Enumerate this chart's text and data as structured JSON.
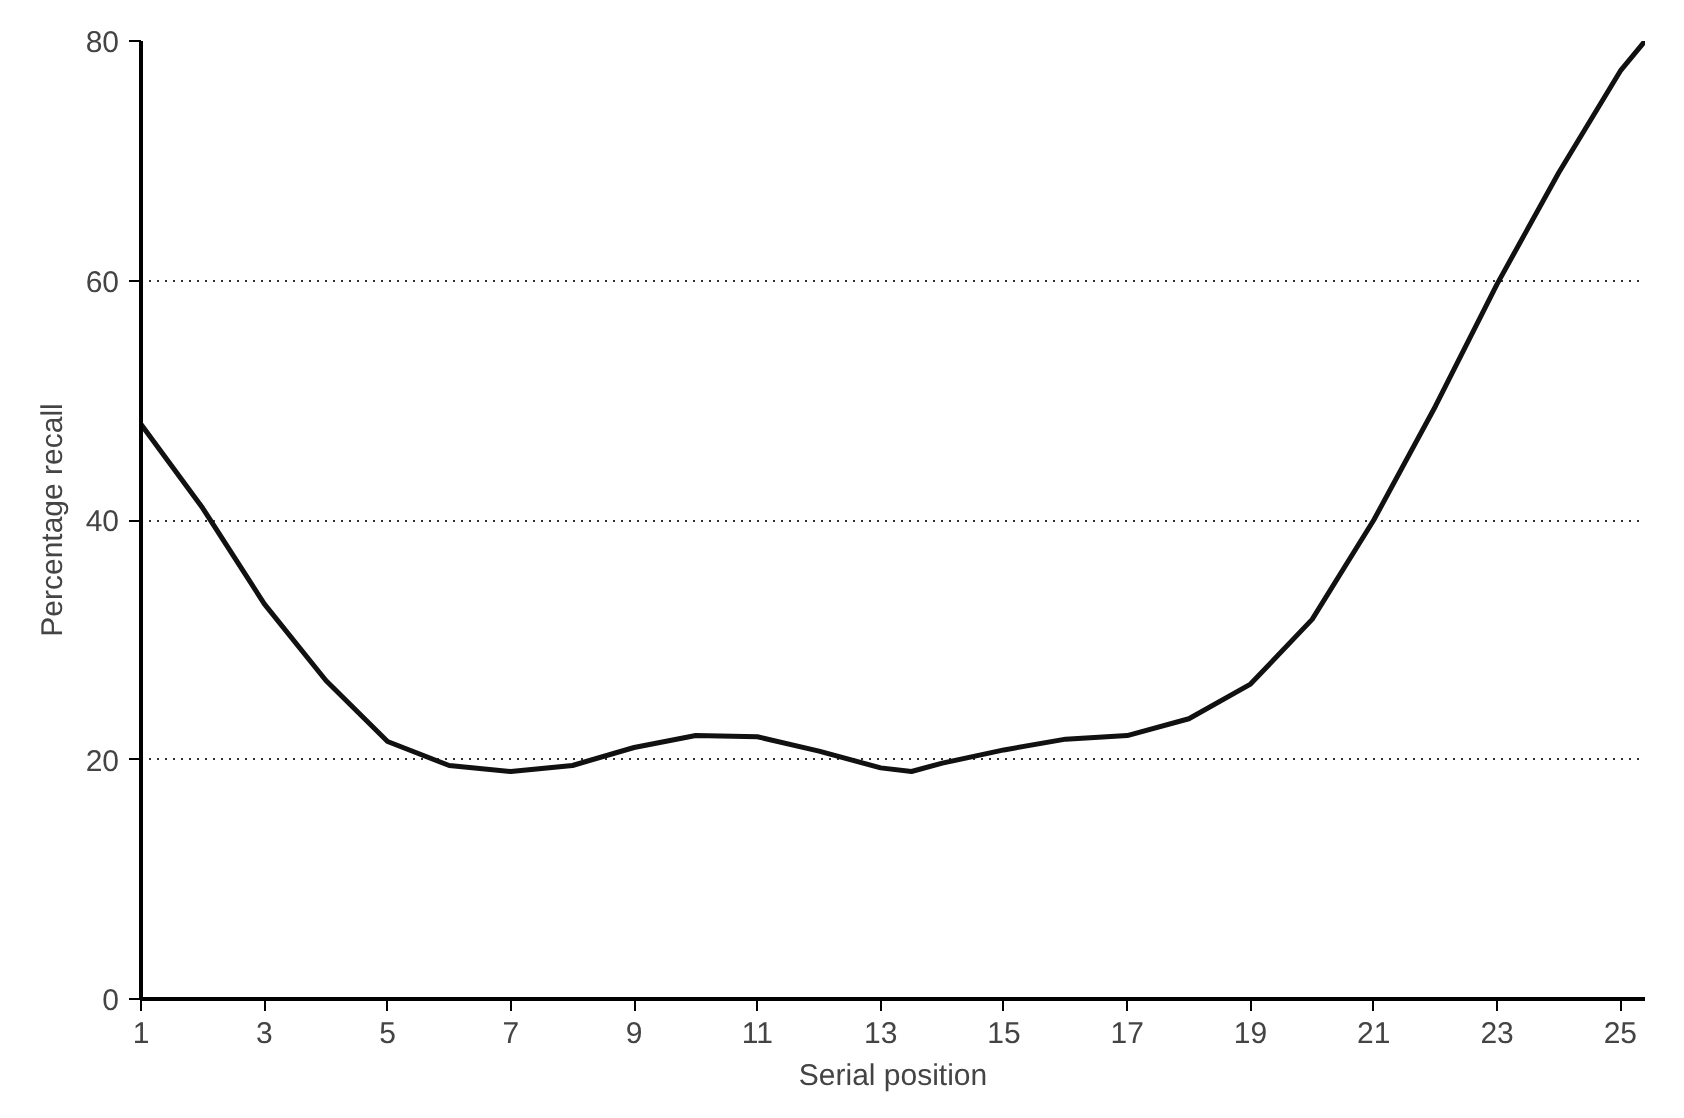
{
  "chart_data": {
    "type": "line",
    "xlabel": "Serial position",
    "ylabel": "Percentage recall",
    "x": [
      1,
      2,
      3,
      4,
      5,
      6,
      7,
      8,
      9,
      10,
      11,
      12,
      13,
      13.5,
      14,
      15,
      16,
      17,
      18,
      19,
      20,
      21,
      22,
      23,
      24,
      25,
      25.4
    ],
    "series": [
      {
        "color": "#111111",
        "values": [
          48,
          41,
          33,
          26.6,
          21.5,
          19.5,
          19,
          19.5,
          21,
          22,
          21.9,
          20.7,
          19.3,
          19,
          19.7,
          20.8,
          21.7,
          22,
          23.4,
          26.3,
          31.7,
          40,
          49.5,
          59.7,
          69,
          77.5,
          80
        ]
      }
    ],
    "xlim": [
      1,
      25.4
    ],
    "ylim": [
      0,
      80
    ],
    "xticks": [
      1,
      3,
      5,
      7,
      9,
      11,
      13,
      15,
      17,
      19,
      21,
      23,
      25
    ],
    "yticks": [
      0,
      20,
      40,
      60,
      80
    ],
    "grid": "y",
    "marker": "none",
    "line_style": "solid"
  }
}
